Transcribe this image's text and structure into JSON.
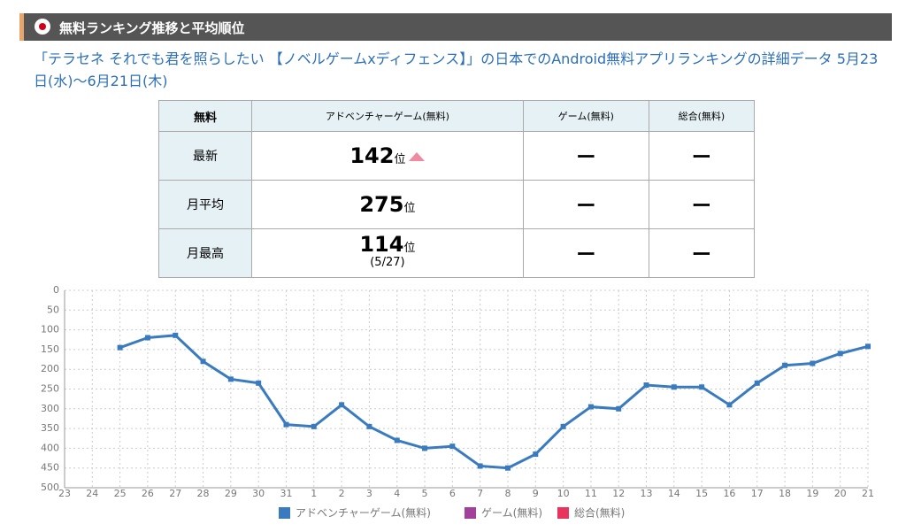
{
  "header": {
    "title": "無料ランキング推移と平均順位"
  },
  "description": "「テラセネ それでも君を照らしたい 【ノベルゲームxディフェンス】」の日本でのAndroid無料アプリランキングの詳細データ 5月23日(水)〜6月21日(木)",
  "table": {
    "header": [
      "無料",
      "アドベンチャーゲーム(無料)",
      "ゲーム(無料)",
      "総合(無料)"
    ],
    "unit": "位",
    "rows": [
      [
        "最新",
        "142",
        "ー",
        "ー"
      ],
      [
        "月平均",
        "275",
        "ー",
        "ー"
      ],
      [
        "月最高",
        "114",
        "ー",
        "ー"
      ]
    ],
    "best_date": "(5/27)"
  },
  "chart_data": {
    "type": "line",
    "y_inverted": true,
    "grid": true,
    "categories": [
      "23",
      "24",
      "25",
      "26",
      "27",
      "28",
      "29",
      "30",
      "31",
      "1",
      "2",
      "3",
      "4",
      "5",
      "6",
      "7",
      "8",
      "9",
      "10",
      "11",
      "12",
      "13",
      "14",
      "15",
      "16",
      "17",
      "18",
      "19",
      "20",
      "21"
    ],
    "series": [
      {
        "name": "アドベンチャーゲーム(無料)",
        "color": "#3a7bbf",
        "values": [
          null,
          null,
          145,
          120,
          114,
          180,
          225,
          235,
          340,
          345,
          290,
          345,
          380,
          400,
          395,
          445,
          450,
          415,
          345,
          295,
          300,
          240,
          245,
          245,
          290,
          235,
          190,
          185,
          160,
          142
        ]
      },
      {
        "name": "ゲーム(無料)",
        "color": "#a3409c",
        "values": [
          null,
          null,
          null,
          null,
          null,
          null,
          null,
          null,
          null,
          null,
          null,
          null,
          null,
          null,
          null,
          null,
          null,
          null,
          null,
          null,
          null,
          null,
          null,
          null,
          null,
          null,
          null,
          null,
          null,
          null
        ]
      },
      {
        "name": "総合(無料)",
        "color": "#e9335c",
        "values": [
          null,
          null,
          null,
          null,
          null,
          null,
          null,
          null,
          null,
          null,
          null,
          null,
          null,
          null,
          null,
          null,
          null,
          null,
          null,
          null,
          null,
          null,
          null,
          null,
          null,
          null,
          null,
          null,
          null,
          null
        ]
      }
    ],
    "ylim": [
      0,
      500
    ],
    "yticks": [
      0,
      50,
      100,
      150,
      200,
      250,
      300,
      350,
      400,
      450,
      500
    ]
  }
}
